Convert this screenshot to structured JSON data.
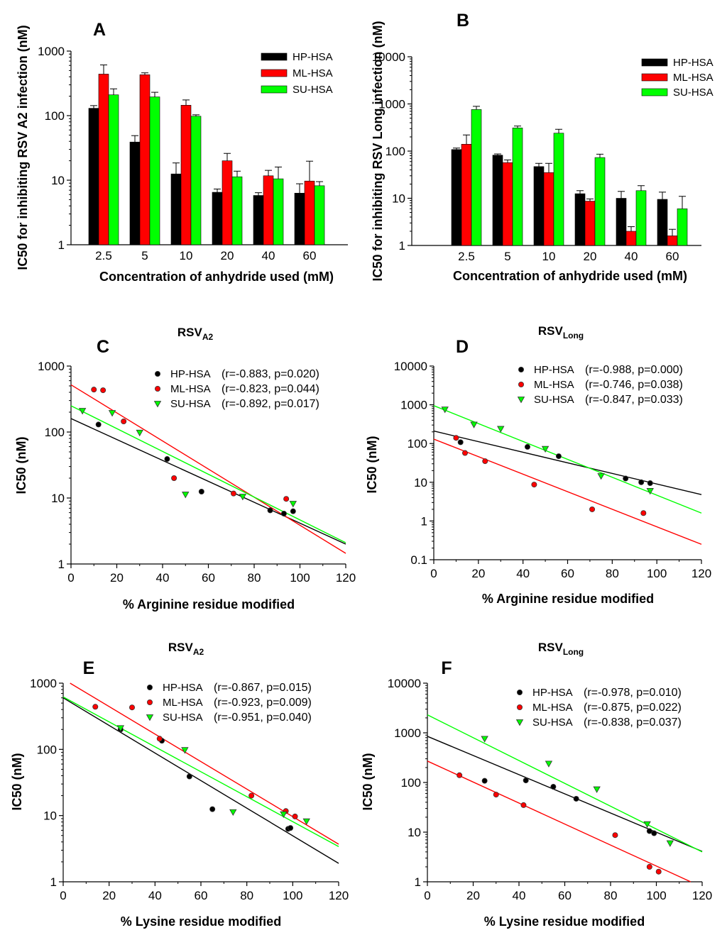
{
  "colors": {
    "HP-HSA": "#000000",
    "ML-HSA": "#ff0000",
    "SU-HSA": "#00ff00"
  },
  "chart_data": [
    {
      "panel": "A",
      "type": "bar",
      "title": "",
      "xlabel": "Concentration of anhydride used (mM)",
      "ylabel": "IC50 for inhibiting RSV A2 infection (nM)",
      "yscale": "log",
      "ylim": [
        1,
        1000
      ],
      "yticks": [
        "1",
        "10",
        "100",
        "1000"
      ],
      "categories": [
        "2.5",
        "5",
        "10",
        "20",
        "40",
        "60"
      ],
      "legend_position": "top-right",
      "series": [
        {
          "name": "HP-HSA",
          "values": [
            130,
            39,
            12.5,
            6.5,
            5.8,
            6.3
          ],
          "errors": [
            13,
            10,
            6,
            0.8,
            0.6,
            2.5
          ]
        },
        {
          "name": "ML-HSA",
          "values": [
            440,
            430,
            145,
            20,
            11.7,
            9.7
          ],
          "errors": [
            170,
            30,
            30,
            6,
            2.5,
            10
          ]
        },
        {
          "name": "SU-HSA",
          "values": [
            210,
            195,
            98,
            11.3,
            10.5,
            8.2
          ],
          "errors": [
            50,
            35,
            5,
            2.5,
            5.5,
            1.3
          ]
        }
      ]
    },
    {
      "panel": "B",
      "type": "bar",
      "title": "",
      "xlabel": "Concentration of anhydride used (mM)",
      "ylabel": "IC50 for inhibiting RSV Long infection (nM)",
      "yscale": "log",
      "ylim": [
        1,
        10000
      ],
      "yticks": [
        "1",
        "10",
        "100",
        "1000",
        "10000"
      ],
      "categories": [
        "2.5",
        "5",
        "10",
        "20",
        "40",
        "60"
      ],
      "legend_position": "top-right",
      "series": [
        {
          "name": "HP-HSA",
          "values": [
            108,
            82,
            47,
            12.5,
            10,
            9.5
          ],
          "errors": [
            8,
            5,
            8,
            2,
            4,
            4
          ]
        },
        {
          "name": "ML-HSA",
          "values": [
            140,
            57,
            35,
            8.7,
            2,
            1.6
          ],
          "errors": [
            80,
            8,
            20,
            1,
            0.5,
            0.6
          ]
        },
        {
          "name": "SU-HSA",
          "values": [
            760,
            310,
            240,
            73,
            14.5,
            6
          ],
          "errors": [
            130,
            30,
            50,
            13,
            4,
            5
          ]
        }
      ]
    },
    {
      "panel": "C",
      "type": "scatter",
      "title": "RSV",
      "title_sub": "A2",
      "xlabel": "% Arginine residue modified",
      "ylabel": "IC50 (nM)",
      "yscale": "log",
      "xlim": [
        0,
        120
      ],
      "ylim": [
        1,
        1000
      ],
      "xticks": [
        "0",
        "20",
        "40",
        "60",
        "80",
        "100",
        "120"
      ],
      "yticks": [
        "1",
        "10",
        "100",
        "1000"
      ],
      "legend_position": "top-right",
      "series": [
        {
          "name": "HP-HSA",
          "stats": "(r=-0.883, p=0.020)",
          "x": [
            12,
            42,
            57,
            87,
            93,
            97
          ],
          "y": [
            130,
            39,
            12.5,
            6.5,
            5.8,
            6.3
          ],
          "fit": [
            [
              0,
              160
            ],
            [
              120,
              2.0
            ]
          ]
        },
        {
          "name": "ML-HSA",
          "stats": "(r=-0.823, p=0.044)",
          "x": [
            10,
            14,
            23,
            45,
            71,
            94
          ],
          "y": [
            440,
            430,
            145,
            20,
            11.7,
            9.7
          ],
          "fit": [
            [
              0,
              520
            ],
            [
              120,
              1.45
            ]
          ]
        },
        {
          "name": "SU-HSA",
          "stats": "(r=-0.892, p=0.017)",
          "x": [
            5,
            18,
            30,
            50,
            75,
            97
          ],
          "y": [
            210,
            195,
            98,
            11.3,
            10.5,
            8.2
          ],
          "fit": [
            [
              0,
              250
            ],
            [
              120,
              2.1
            ]
          ]
        }
      ]
    },
    {
      "panel": "D",
      "type": "scatter",
      "title": "RSV",
      "title_sub": "Long",
      "xlabel": "% Arginine residue modified",
      "ylabel": "IC50 (nM)",
      "yscale": "log",
      "xlim": [
        0,
        120
      ],
      "ylim": [
        0.1,
        10000
      ],
      "xticks": [
        "0",
        "20",
        "40",
        "60",
        "80",
        "100",
        "120"
      ],
      "yticks": [
        "0.1",
        "1",
        "10",
        "100",
        "1000",
        "10000"
      ],
      "legend_position": "top-right",
      "series": [
        {
          "name": "HP-HSA",
          "stats": "(r=-0.988, p=0.000)",
          "x": [
            12,
            42,
            56,
            86,
            93,
            97
          ],
          "y": [
            108,
            82,
            47,
            12.5,
            10,
            9.5
          ],
          "fit": [
            [
              0,
              210
            ],
            [
              120,
              4.8
            ]
          ]
        },
        {
          "name": "ML-HSA",
          "stats": "(r=-0.746, p=0.038)",
          "x": [
            10,
            14,
            23,
            45,
            71,
            94
          ],
          "y": [
            140,
            57,
            35,
            8.7,
            2,
            1.6
          ],
          "fit": [
            [
              0,
              130
            ],
            [
              120,
              0.25
            ]
          ]
        },
        {
          "name": "SU-HSA",
          "stats": "(r=-0.847, p=0.033)",
          "x": [
            5,
            18,
            30,
            50,
            75,
            97
          ],
          "y": [
            760,
            310,
            240,
            73,
            14.5,
            6
          ],
          "fit": [
            [
              0,
              950
            ],
            [
              120,
              1.6
            ]
          ]
        }
      ]
    },
    {
      "panel": "E",
      "type": "scatter",
      "title": "RSV",
      "title_sub": "A2",
      "xlabel": "% Lysine residue modified",
      "ylabel": "IC50 (nM)",
      "yscale": "log",
      "xlim": [
        0,
        120
      ],
      "ylim": [
        1,
        1000
      ],
      "xticks": [
        "0",
        "20",
        "40",
        "60",
        "80",
        "100",
        "120"
      ],
      "yticks": [
        "1",
        "10",
        "100",
        "1000"
      ],
      "legend_position": "top-right",
      "series": [
        {
          "name": "HP-HSA",
          "stats": "(r=-0.867, p=0.015)",
          "x": [
            25,
            43,
            55,
            65,
            98,
            99
          ],
          "y": [
            200,
            135,
            39,
            12.5,
            6.3,
            6.5
          ],
          "fit": [
            [
              0,
              600
            ],
            [
              120,
              1.9
            ]
          ]
        },
        {
          "name": "ML-HSA",
          "stats": "(r=-0.923, p=0.009)",
          "x": [
            14,
            30,
            42,
            82,
            97,
            101
          ],
          "y": [
            440,
            430,
            145,
            20,
            11.7,
            9.7
          ],
          "fit": [
            [
              3,
              1000
            ],
            [
              120,
              3.7
            ]
          ]
        },
        {
          "name": "SU-HSA",
          "stats": "(r=-0.951, p=0.040)",
          "x": [
            25,
            53,
            74,
            96,
            106
          ],
          "y": [
            210,
            98,
            11.3,
            10.5,
            8.2
          ],
          "fit": [
            [
              0,
              620
            ],
            [
              120,
              3.4
            ]
          ]
        }
      ]
    },
    {
      "panel": "F",
      "type": "scatter",
      "title": "RSV",
      "title_sub": "Long",
      "xlabel": "% Lysine residue modified",
      "ylabel": "IC50 (nM)",
      "yscale": "log",
      "xlim": [
        0,
        120
      ],
      "ylim": [
        1,
        10000
      ],
      "xticks": [
        "0",
        "20",
        "40",
        "60",
        "80",
        "100",
        "120"
      ],
      "yticks": [
        "1",
        "10",
        "100",
        "1000",
        "10000"
      ],
      "legend_position": "top-right",
      "series": [
        {
          "name": "HP-HSA",
          "stats": "(r=-0.978, p=0.010)",
          "x": [
            25,
            43,
            55,
            65,
            97,
            99
          ],
          "y": [
            108,
            110,
            82,
            47,
            10.5,
            9.5
          ],
          "fit": [
            [
              0,
              850
            ],
            [
              120,
              4.1
            ]
          ]
        },
        {
          "name": "ML-HSA",
          "stats": "(r=-0.875, p=0.022)",
          "x": [
            14,
            30,
            42,
            82,
            97,
            101
          ],
          "y": [
            140,
            57,
            35,
            8.7,
            2,
            1.6
          ],
          "fit": [
            [
              0,
              270
            ],
            [
              115,
              1.0
            ]
          ]
        },
        {
          "name": "SU-HSA",
          "stats": "(r=-0.838, p=0.037)",
          "x": [
            25,
            53,
            74,
            96,
            106
          ],
          "y": [
            760,
            240,
            73,
            14.5,
            6
          ],
          "fit": [
            [
              0,
              2300
            ],
            [
              120,
              4.0
            ]
          ]
        }
      ]
    }
  ]
}
